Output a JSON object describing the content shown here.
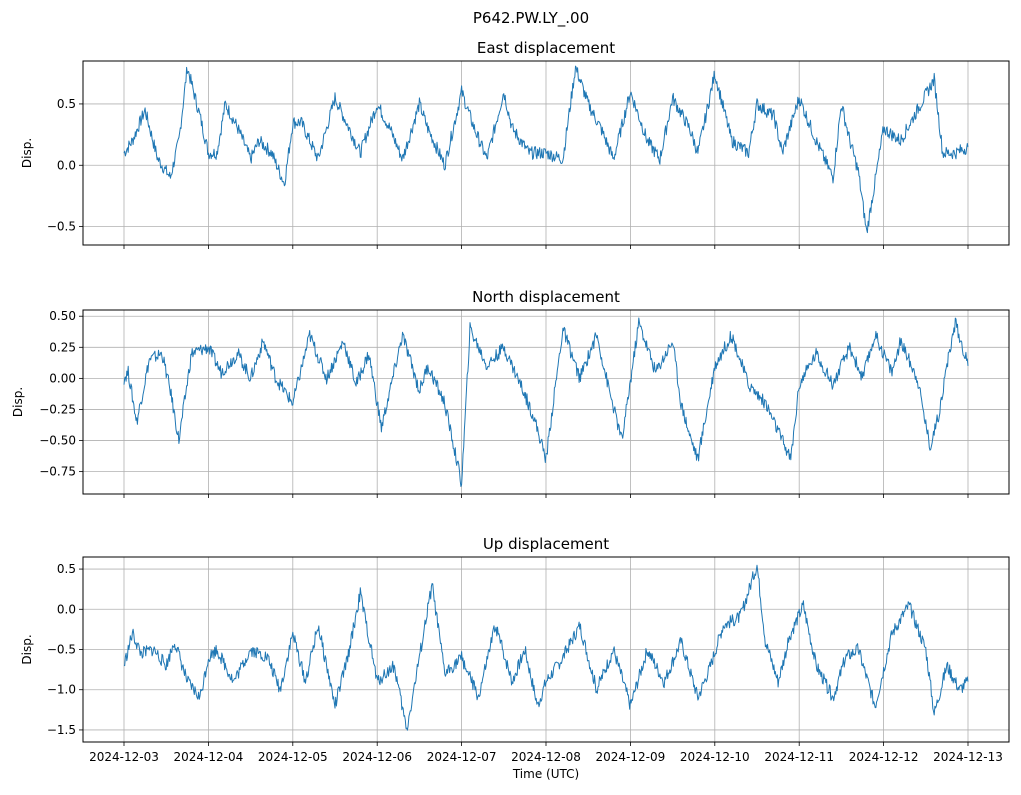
{
  "suptitle": "P642.PW.LY_.00",
  "x_axis": {
    "label": "Time (UTC)",
    "tick_labels": [
      "2024-12-03",
      "2024-12-04",
      "2024-12-05",
      "2024-12-06",
      "2024-12-07",
      "2024-12-08",
      "2024-12-09",
      "2024-12-10",
      "2024-12-11",
      "2024-12-12",
      "2024-12-13"
    ]
  },
  "colors": {
    "line": "#1f77b4",
    "grid": "#b0b0b0",
    "axes": "#000000"
  },
  "chart_data": [
    {
      "type": "line",
      "title": "East displacement",
      "ylabel": "Disp.",
      "xlim": [
        0,
        10
      ],
      "ylim": [
        -0.65,
        0.85
      ],
      "yticks": [
        -0.5,
        0.0,
        0.5
      ],
      "ytick_labels": [
        "−0.5",
        "0.0",
        "0.5"
      ],
      "grid": true,
      "x": [
        0,
        0.1,
        0.25,
        0.4,
        0.55,
        0.65,
        0.75,
        0.9,
        1.0,
        1.1,
        1.2,
        1.35,
        1.5,
        1.6,
        1.75,
        1.9,
        2.0,
        2.1,
        2.3,
        2.5,
        2.6,
        2.8,
        3.0,
        3.15,
        3.3,
        3.5,
        3.6,
        3.8,
        4.0,
        4.15,
        4.3,
        4.5,
        4.6,
        4.8,
        5.0,
        5.2,
        5.35,
        5.5,
        5.65,
        5.8,
        6.0,
        6.2,
        6.35,
        6.5,
        6.7,
        6.8,
        7.0,
        7.2,
        7.4,
        7.5,
        7.7,
        7.8,
        8.0,
        8.2,
        8.4,
        8.5,
        8.6,
        8.7,
        8.8,
        9.0,
        9.2,
        9.4,
        9.6,
        9.7,
        9.85,
        10.0
      ],
      "y": [
        0.1,
        0.2,
        0.45,
        0.05,
        -0.1,
        0.2,
        0.8,
        0.4,
        0.1,
        0.1,
        0.5,
        0.3,
        0.05,
        0.2,
        0.1,
        -0.15,
        0.35,
        0.35,
        0.05,
        0.55,
        0.4,
        0.1,
        0.5,
        0.3,
        0.05,
        0.5,
        0.3,
        0.0,
        0.6,
        0.3,
        0.05,
        0.6,
        0.3,
        0.1,
        0.1,
        0.05,
        0.8,
        0.5,
        0.3,
        0.05,
        0.6,
        0.2,
        0.05,
        0.55,
        0.3,
        0.1,
        0.75,
        0.2,
        0.1,
        0.5,
        0.4,
        0.1,
        0.55,
        0.2,
        -0.1,
        0.5,
        0.2,
        -0.05,
        -0.55,
        0.3,
        0.2,
        0.45,
        0.7,
        0.1,
        0.1,
        0.15
      ]
    },
    {
      "type": "line",
      "title": "North displacement",
      "ylabel": "Disp.",
      "xlim": [
        0,
        10
      ],
      "ylim": [
        -0.93,
        0.55
      ],
      "yticks": [
        -0.75,
        -0.5,
        -0.25,
        0.0,
        0.25,
        0.5
      ],
      "ytick_labels": [
        "−0.75",
        "−0.50",
        "−0.25",
        "0.00",
        "0.25",
        "0.50"
      ],
      "grid": true,
      "x": [
        0,
        0.05,
        0.15,
        0.3,
        0.45,
        0.55,
        0.65,
        0.8,
        1.0,
        1.15,
        1.35,
        1.5,
        1.65,
        1.8,
        2.0,
        2.2,
        2.4,
        2.6,
        2.75,
        2.9,
        3.05,
        3.3,
        3.5,
        3.6,
        3.8,
        4.0,
        4.1,
        4.3,
        4.5,
        4.7,
        4.85,
        5.0,
        5.2,
        5.4,
        5.6,
        5.75,
        5.9,
        6.1,
        6.3,
        6.5,
        6.6,
        6.7,
        6.8,
        7.0,
        7.2,
        7.4,
        7.6,
        7.8,
        7.9,
        8.0,
        8.2,
        8.4,
        8.6,
        8.75,
        8.9,
        9.1,
        9.2,
        9.4,
        9.55,
        9.65,
        9.75,
        9.85,
        10.0
      ],
      "y": [
        0.0,
        0.05,
        -0.35,
        0.15,
        0.2,
        -0.1,
        -0.5,
        0.2,
        0.25,
        0.05,
        0.2,
        0.0,
        0.3,
        0.0,
        -0.2,
        0.35,
        0.0,
        0.3,
        -0.05,
        0.2,
        -0.4,
        0.35,
        -0.1,
        0.1,
        -0.2,
        -0.85,
        0.4,
        0.1,
        0.25,
        -0.05,
        -0.3,
        -0.65,
        0.4,
        0.0,
        0.35,
        -0.1,
        -0.5,
        0.45,
        0.05,
        0.3,
        -0.2,
        -0.45,
        -0.65,
        0.1,
        0.35,
        -0.05,
        -0.2,
        -0.5,
        -0.65,
        -0.05,
        0.2,
        -0.05,
        0.25,
        0.0,
        0.35,
        0.05,
        0.3,
        0.0,
        -0.55,
        -0.3,
        0.1,
        0.45,
        0.1
      ]
    },
    {
      "type": "line",
      "title": "Up displacement",
      "ylabel": "Disp.",
      "xlim": [
        0,
        10
      ],
      "ylim": [
        -1.65,
        0.65
      ],
      "yticks": [
        -1.5,
        -1.0,
        -0.5,
        0.0,
        0.5
      ],
      "ytick_labels": [
        "−1.5",
        "−1.0",
        "−0.5",
        "0.0",
        "0.5"
      ],
      "grid": true,
      "x": [
        0,
        0.1,
        0.2,
        0.35,
        0.5,
        0.6,
        0.75,
        0.9,
        1.0,
        1.1,
        1.3,
        1.5,
        1.7,
        1.85,
        2.0,
        2.15,
        2.3,
        2.5,
        2.65,
        2.8,
        3.0,
        3.2,
        3.35,
        3.5,
        3.65,
        3.8,
        4.0,
        4.2,
        4.4,
        4.6,
        4.75,
        4.9,
        5.0,
        5.2,
        5.4,
        5.6,
        5.8,
        6.0,
        6.2,
        6.4,
        6.6,
        6.8,
        6.95,
        7.1,
        7.3,
        7.5,
        7.6,
        7.75,
        7.9,
        8.05,
        8.2,
        8.4,
        8.55,
        8.7,
        8.9,
        9.1,
        9.3,
        9.5,
        9.6,
        9.75,
        9.9,
        10.0
      ],
      "y": [
        -0.7,
        -0.3,
        -0.55,
        -0.5,
        -0.7,
        -0.4,
        -0.9,
        -1.1,
        -0.6,
        -0.5,
        -0.9,
        -0.5,
        -0.6,
        -1.0,
        -0.3,
        -0.9,
        -0.2,
        -1.2,
        -0.6,
        0.2,
        -0.9,
        -0.7,
        -1.5,
        -0.6,
        0.3,
        -0.8,
        -0.6,
        -1.1,
        -0.2,
        -0.9,
        -0.5,
        -1.2,
        -0.9,
        -0.6,
        -0.2,
        -1.0,
        -0.5,
        -1.2,
        -0.5,
        -0.9,
        -0.4,
        -1.1,
        -0.7,
        -0.2,
        -0.1,
        0.55,
        -0.4,
        -0.9,
        -0.3,
        0.05,
        -0.7,
        -1.1,
        -0.6,
        -0.5,
        -1.2,
        -0.3,
        0.05,
        -0.5,
        -1.3,
        -0.7,
        -1.0,
        -0.9
      ]
    }
  ]
}
